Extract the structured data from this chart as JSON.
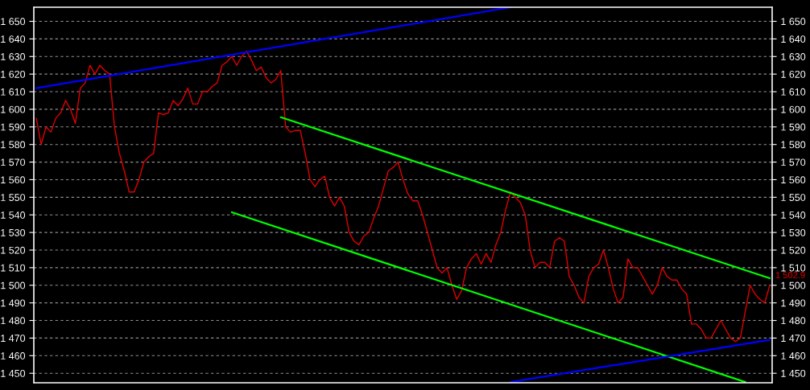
{
  "chart_data": {
    "type": "line",
    "categories": [
      null,
      null,
      null,
      null,
      null,
      null,
      null,
      null,
      null,
      null,
      null,
      null,
      null,
      null,
      null,
      null,
      null,
      null,
      null,
      null,
      null,
      null,
      null,
      null,
      null,
      null,
      null,
      null,
      null,
      null,
      null,
      null,
      null,
      null,
      null,
      null,
      null,
      null,
      null,
      null,
      null,
      null,
      null,
      null,
      null,
      null,
      null,
      null,
      null,
      null,
      null,
      null,
      null,
      null,
      null,
      null,
      null,
      null,
      null,
      null,
      null,
      null,
      null,
      null,
      null,
      null,
      null,
      null,
      null,
      null,
      null,
      null,
      null,
      null,
      null,
      null,
      null,
      null,
      null,
      null,
      null,
      null,
      null,
      null,
      null,
      null,
      null,
      null,
      null,
      null,
      null,
      null,
      null,
      null,
      null,
      null,
      null,
      null,
      null,
      null,
      null,
      null,
      null,
      null,
      null,
      null,
      null,
      null,
      null,
      null,
      null,
      null,
      null,
      null,
      null,
      null,
      null,
      null,
      null,
      null,
      null,
      null,
      null,
      null,
      null,
      null,
      null,
      null,
      null,
      null,
      null,
      null,
      null,
      null,
      null,
      null,
      null,
      null,
      null,
      null,
      null,
      null,
      null,
      null,
      null,
      null,
      null,
      null,
      null,
      null,
      null
    ],
    "series": [
      {
        "color": "#e00000",
        "values": [
          1595,
          1580,
          1590,
          1587,
          1595,
          1598,
          1605,
          1600,
          1592,
          1612,
          1615,
          1625,
          1620,
          1625,
          1622,
          1620,
          1590,
          1575,
          1565,
          1553,
          1553,
          1560,
          1570,
          1573,
          1575,
          1598,
          1597,
          1598,
          1605,
          1602,
          1606,
          1612,
          1603,
          1603,
          1610,
          1610,
          1613,
          1615,
          1625,
          1627,
          1630,
          1625,
          1630,
          1633,
          1628,
          1622,
          1624,
          1618,
          1615,
          1617,
          1622,
          1590,
          1587,
          1588,
          1588,
          1575,
          1560,
          1556,
          1560,
          1562,
          1550,
          1545,
          1550,
          1545,
          1530,
          1525,
          1523,
          1528,
          1530,
          1538,
          1545,
          1555,
          1565,
          1567,
          1570,
          1560,
          1552,
          1548,
          1548,
          1540,
          1530,
          1520,
          1510,
          1507,
          1510,
          1500,
          1492,
          1497,
          1510,
          1515,
          1518,
          1512,
          1518,
          1513,
          1523,
          1530,
          1543,
          1553,
          1550,
          1547,
          1540,
          1520,
          1510,
          1513,
          1513,
          1510,
          1525,
          1527,
          1525,
          1505,
          1500,
          1493,
          1490,
          1505,
          1510,
          1512,
          1520,
          1510,
          1498,
          1490,
          1493,
          1515,
          1510,
          1510,
          1505,
          1500,
          1495,
          1500,
          1510,
          1505,
          1503,
          1503,
          1498,
          1495,
          1478,
          1478,
          1475,
          1470,
          1470,
          1475,
          1480,
          1475,
          1470,
          1468,
          1470,
          1485,
          1500,
          1495,
          1492,
          1490,
          1500
        ]
      },
      {
        "color": "#0000ff",
        "values": [
          1612,
          null,
          null,
          null,
          null,
          null,
          null,
          null,
          null,
          null,
          null,
          null,
          null,
          null,
          null,
          null,
          null,
          null,
          null,
          null,
          null,
          null,
          null,
          null,
          null,
          null,
          null,
          null,
          null,
          null,
          null,
          null,
          null,
          null,
          null,
          null,
          null,
          null,
          null,
          null,
          null,
          null,
          null,
          null,
          null,
          null,
          null,
          null,
          null,
          null,
          null,
          null,
          null,
          null,
          null,
          null,
          null,
          null,
          null,
          null,
          null,
          null,
          null,
          null,
          null,
          null,
          null,
          null,
          null,
          null,
          null,
          null,
          null,
          null,
          null,
          null,
          null,
          null,
          null,
          null,
          null,
          null,
          null,
          null,
          null,
          null,
          null,
          null,
          null,
          null,
          null,
          null,
          null,
          null,
          null,
          null,
          null,
          1658,
          null,
          null,
          null,
          null,
          null,
          null,
          null,
          null,
          null,
          null,
          null,
          null,
          null,
          null,
          null,
          null,
          null,
          null,
          null,
          null,
          null,
          null,
          null,
          null,
          null,
          null,
          null,
          null,
          null,
          null,
          null,
          null,
          null,
          null,
          null,
          null,
          null,
          null,
          null,
          null,
          null,
          null,
          null,
          null,
          null,
          null,
          null,
          null,
          null,
          null,
          null,
          null,
          null
        ]
      },
      {
        "color": "#00ff00",
        "values": [
          null,
          null,
          null,
          null,
          null,
          null,
          null,
          null,
          null,
          null,
          null,
          null,
          null,
          null,
          null,
          null,
          null,
          null,
          null,
          null,
          null,
          null,
          null,
          null,
          null,
          null,
          null,
          null,
          null,
          null,
          null,
          null,
          null,
          null,
          null,
          null,
          null,
          null,
          null,
          null,
          null,
          null,
          null,
          null,
          null,
          null,
          null,
          null,
          null,
          null,
          1595.5,
          null,
          null,
          null,
          null,
          null,
          null,
          null,
          null,
          null,
          null,
          null,
          null,
          null,
          null,
          null,
          null,
          null,
          null,
          null,
          null,
          null,
          null,
          null,
          null,
          null,
          null,
          null,
          null,
          null,
          null,
          null,
          null,
          null,
          null,
          null,
          null,
          null,
          null,
          null,
          null,
          null,
          null,
          null,
          null,
          null,
          null,
          null,
          null,
          null,
          null,
          null,
          null,
          null,
          null,
          null,
          null,
          null,
          null,
          null,
          null,
          null,
          null,
          null,
          null,
          null,
          null,
          null,
          null,
          null,
          null,
          null,
          null,
          null,
          null,
          null,
          null,
          null,
          null,
          null,
          null,
          null,
          null,
          null,
          null,
          null,
          null,
          null,
          null,
          null,
          null,
          null,
          null,
          null,
          null,
          null,
          null,
          null,
          null,
          null,
          1504
        ]
      },
      {
        "color": "#00ff00",
        "values": [
          null,
          null,
          null,
          null,
          null,
          null,
          null,
          null,
          null,
          null,
          null,
          null,
          null,
          null,
          null,
          null,
          null,
          null,
          null,
          null,
          null,
          null,
          null,
          null,
          null,
          null,
          null,
          null,
          null,
          null,
          null,
          null,
          null,
          null,
          null,
          null,
          null,
          null,
          null,
          null,
          1541.5,
          null,
          null,
          null,
          null,
          null,
          null,
          null,
          null,
          null,
          null,
          null,
          null,
          null,
          null,
          null,
          null,
          null,
          null,
          null,
          null,
          null,
          null,
          null,
          null,
          null,
          null,
          null,
          null,
          null,
          null,
          null,
          null,
          null,
          null,
          null,
          null,
          null,
          null,
          null,
          null,
          null,
          null,
          null,
          null,
          null,
          null,
          null,
          null,
          null,
          null,
          null,
          null,
          null,
          null,
          null,
          null,
          null,
          null,
          null,
          null,
          null,
          null,
          null,
          null,
          null,
          null,
          null,
          null,
          null,
          null,
          null,
          null,
          null,
          null,
          null,
          null,
          null,
          null,
          null,
          null,
          null,
          null,
          null,
          null,
          null,
          null,
          null,
          null,
          null,
          null,
          null,
          null,
          null,
          null,
          null,
          null,
          null,
          null,
          null,
          null,
          null,
          null,
          null,
          null,
          1445,
          null,
          null,
          null,
          null,
          null
        ]
      },
      {
        "color": "#0000ff",
        "values": [
          null,
          null,
          null,
          null,
          null,
          null,
          null,
          null,
          null,
          null,
          null,
          null,
          null,
          null,
          null,
          null,
          null,
          null,
          null,
          null,
          null,
          null,
          null,
          null,
          null,
          null,
          null,
          null,
          null,
          null,
          null,
          null,
          null,
          null,
          null,
          null,
          null,
          null,
          null,
          null,
          null,
          null,
          null,
          null,
          null,
          null,
          null,
          null,
          null,
          null,
          null,
          null,
          null,
          null,
          null,
          null,
          null,
          null,
          null,
          null,
          null,
          null,
          null,
          null,
          null,
          null,
          null,
          null,
          null,
          null,
          null,
          null,
          null,
          null,
          null,
          null,
          null,
          null,
          null,
          null,
          null,
          null,
          null,
          null,
          null,
          null,
          null,
          null,
          null,
          null,
          null,
          null,
          null,
          null,
          null,
          null,
          null,
          1445,
          null,
          null,
          null,
          null,
          null,
          null,
          null,
          null,
          null,
          null,
          null,
          null,
          null,
          null,
          null,
          null,
          null,
          null,
          null,
          null,
          null,
          null,
          null,
          null,
          null,
          null,
          null,
          null,
          null,
          null,
          null,
          null,
          null,
          null,
          null,
          null,
          null,
          null,
          null,
          null,
          null,
          null,
          null,
          null,
          null,
          null,
          null,
          null,
          null,
          null,
          null,
          null,
          1469
        ]
      }
    ],
    "ylim": [
      1444.6,
      1658
    ],
    "yticks": [
      {
        "value": 1450,
        "label": "1 450"
      },
      {
        "value": 1460,
        "label": "1 460"
      },
      {
        "value": 1470,
        "label": "1 470"
      },
      {
        "value": 1480,
        "label": "1 480"
      },
      {
        "value": 1490,
        "label": "1 490"
      },
      {
        "value": 1500,
        "label": "1 500"
      },
      {
        "value": 1510,
        "label": "1 510"
      },
      {
        "value": 1520,
        "label": "1 520"
      },
      {
        "value": 1530,
        "label": "1 530"
      },
      {
        "value": 1540,
        "label": "1 540"
      },
      {
        "value": 1550,
        "label": "1 550"
      },
      {
        "value": 1560,
        "label": "1 560"
      },
      {
        "value": 1570,
        "label": "1 570"
      },
      {
        "value": 1580,
        "label": "1 580"
      },
      {
        "value": 1590,
        "label": "1 590"
      },
      {
        "value": 1600,
        "label": "1 600"
      },
      {
        "value": 1610,
        "label": "1 610"
      },
      {
        "value": 1620,
        "label": "1 620"
      },
      {
        "value": 1630,
        "label": "1 630"
      },
      {
        "value": 1640,
        "label": "1 640"
      },
      {
        "value": 1650,
        "label": "1 650"
      }
    ],
    "y2lim": [
      1444.6,
      1658
    ],
    "y2ticks": [
      {
        "value": 1450,
        "label": "1 450"
      },
      {
        "value": 1460,
        "label": "1 460"
      },
      {
        "value": 1470,
        "label": "1 470"
      },
      {
        "value": 1480,
        "label": "1 480"
      },
      {
        "value": 1490,
        "label": "1 490"
      },
      {
        "value": 1500,
        "label": "1 500"
      },
      {
        "value": 1510,
        "label": "1 510"
      },
      {
        "value": 1520,
        "label": "1 520"
      },
      {
        "value": 1530,
        "label": "1 530"
      },
      {
        "value": 1540,
        "label": "1 540"
      },
      {
        "value": 1550,
        "label": "1 550"
      },
      {
        "value": 1560,
        "label": "1 560"
      },
      {
        "value": 1570,
        "label": "1 570"
      },
      {
        "value": 1580,
        "label": "1 580"
      },
      {
        "value": 1590,
        "label": "1 590"
      },
      {
        "value": 1600,
        "label": "1 600"
      },
      {
        "value": 1610,
        "label": "1 610"
      },
      {
        "value": 1620,
        "label": "1 620"
      },
      {
        "value": 1630,
        "label": "1 630"
      },
      {
        "value": 1640,
        "label": "1 640"
      },
      {
        "value": 1650,
        "label": "1 650"
      }
    ],
    "annotations": [
      "1 502.9"
    ],
    "grid": "y",
    "legend": false,
    "tick_labels": "y",
    "marker": "none",
    "line_style": "solid"
  }
}
